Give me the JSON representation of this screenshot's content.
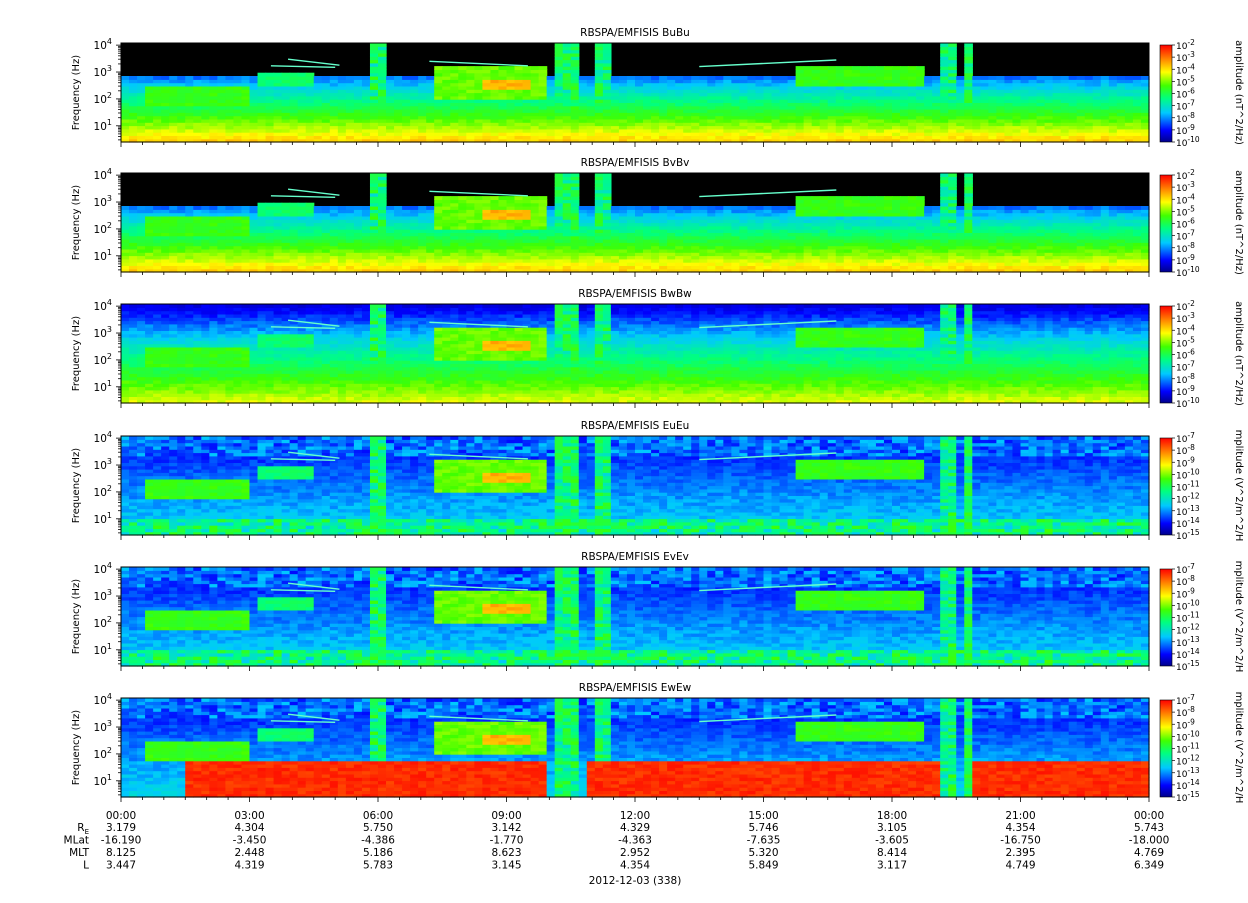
{
  "chart_data": {
    "type": "heatmap",
    "x_axis": {
      "ticks": [
        "00:00",
        "03:00",
        "06:00",
        "09:00",
        "12:00",
        "15:00",
        "18:00",
        "21:00",
        "00:00"
      ],
      "hours": [
        0,
        3,
        6,
        9,
        12,
        15,
        18,
        21,
        24
      ],
      "range_hours": [
        0,
        24
      ],
      "date_label": "2012-12-03 (338)"
    },
    "y_axis": {
      "label": "Frequency (Hz)",
      "scale": "log",
      "range": [
        2.5,
        12000
      ],
      "ticks": [
        {
          "mant": "10",
          "exp": "1",
          "value": 10
        },
        {
          "mant": "10",
          "exp": "2",
          "value": 100
        },
        {
          "mant": "10",
          "exp": "3",
          "value": 1000
        },
        {
          "mant": "10",
          "exp": "4",
          "value": 10000
        }
      ]
    },
    "colormap": {
      "name": "rainbow",
      "stops": [
        "#00008b",
        "#0000ff",
        "#00c8ff",
        "#00ff80",
        "#40ff00",
        "#ffff00",
        "#ff8000",
        "#ff0000"
      ]
    },
    "panels": [
      {
        "title": "RBSPA/EMFISIS  BuBu",
        "kind": "B",
        "fill": "B",
        "colorbar_label": "amplitude (nT^2/Hz)",
        "cbar_exps": [
          "-2",
          "-3",
          "-4",
          "-5",
          "-6",
          "-7",
          "-8",
          "-9",
          "-10"
        ]
      },
      {
        "title": "RBSPA/EMFISIS  BvBv",
        "kind": "B",
        "fill": "B",
        "colorbar_label": "amplitude (nT^2/Hz)",
        "cbar_exps": [
          "-2",
          "-3",
          "-4",
          "-5",
          "-6",
          "-7",
          "-8",
          "-9",
          "-10"
        ]
      },
      {
        "title": "RBSPA/EMFISIS  BwBw",
        "kind": "B",
        "fill": "Bw",
        "colorbar_label": "amplitude (nT^2/Hz)",
        "cbar_exps": [
          "-2",
          "-3",
          "-4",
          "-5",
          "-6",
          "-7",
          "-8",
          "-9",
          "-10"
        ]
      },
      {
        "title": "RBSPA/EMFISIS  EuEu",
        "kind": "E",
        "fill": "E",
        "colorbar_label": "mplitude (V^2/m^2/H",
        "cbar_exps": [
          "-7",
          "-8",
          "-9",
          "-10",
          "-11",
          "-12",
          "-13",
          "-14",
          "-15"
        ]
      },
      {
        "title": "RBSPA/EMFISIS  EvEv",
        "kind": "E",
        "fill": "E",
        "colorbar_label": "mplitude (V^2/m^2/H",
        "cbar_exps": [
          "-7",
          "-8",
          "-9",
          "-10",
          "-11",
          "-12",
          "-13",
          "-14",
          "-15"
        ]
      },
      {
        "title": "RBSPA/EMFISIS  EwEw",
        "kind": "E",
        "fill": "Ew",
        "colorbar_label": "mplitude (V^2/m^2/H",
        "cbar_exps": [
          "-7",
          "-8",
          "-9",
          "-10",
          "-11",
          "-12",
          "-13",
          "-14",
          "-15"
        ]
      }
    ],
    "ephemeris": [
      {
        "label": "R",
        "sub": "E",
        "values": [
          "3.179",
          "4.304",
          "5.750",
          "3.142",
          "4.329",
          "5.746",
          "3.105",
          "4.354",
          "5.743"
        ]
      },
      {
        "label": "MLat",
        "values": [
          "-16.190",
          "-3.450",
          "-4.386",
          "-1.770",
          "-4.363",
          "-7.635",
          "-3.605",
          "-16.750",
          "-18.000"
        ]
      },
      {
        "label": "MLT",
        "values": [
          "8.125",
          "2.448",
          "5.186",
          "8.623",
          "2.952",
          "5.320",
          "8.414",
          "2.395",
          "4.769"
        ]
      },
      {
        "label": "L",
        "values": [
          "3.447",
          "4.319",
          "5.783",
          "3.145",
          "4.354",
          "5.849",
          "3.117",
          "4.749",
          "6.349"
        ]
      }
    ],
    "features": {
      "emission_bands": [
        {
          "panels": "all",
          "t": [
            0.5,
            3.0
          ],
          "f": [
            50,
            300
          ],
          "level": 0.55
        },
        {
          "panels": "all",
          "t": [
            7.3,
            9.9
          ],
          "f": [
            100,
            1500
          ],
          "level": 0.6
        },
        {
          "panels": "all",
          "t": [
            8.5,
            9.5
          ],
          "f": [
            200,
            600
          ],
          "level": 0.8
        },
        {
          "panels": "all",
          "t": [
            15.8,
            18.8
          ],
          "f": [
            300,
            1500
          ],
          "level": 0.55
        },
        {
          "panels": "all",
          "t": [
            3.2,
            4.5
          ],
          "f": [
            300,
            1000
          ],
          "level": 0.45
        }
      ],
      "spike_hours": [
        10.2,
        10.5,
        19.3,
        19.8,
        6.0,
        11.2
      ],
      "chorus_lines": [
        {
          "t": [
            3.9,
            5.1
          ],
          "f": [
            3000,
            1800
          ]
        },
        {
          "t": [
            7.2,
            9.5
          ],
          "f": [
            2500,
            1700
          ]
        },
        {
          "t": [
            13.5,
            16.7
          ],
          "f": [
            1600,
            2800
          ]
        },
        {
          "t": [
            3.5,
            5.0
          ],
          "f": [
            1700,
            1500
          ]
        }
      ]
    }
  }
}
